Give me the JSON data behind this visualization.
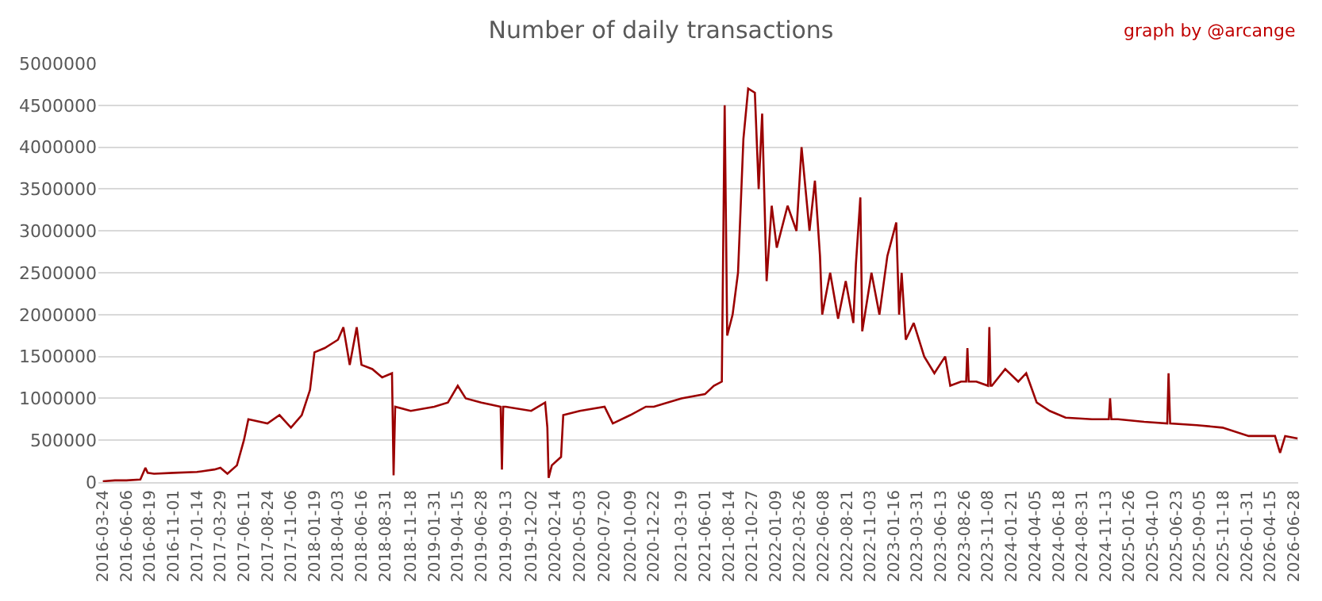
{
  "chart_data": {
    "type": "line",
    "title": "Number of daily transactions",
    "annotations": [
      "graph by @arcange"
    ],
    "x": [
      "2016-03-24",
      "2016-05-01",
      "2016-06-06",
      "2016-07-20",
      "2016-08-05",
      "2016-08-12",
      "2016-09-01",
      "2016-11-01",
      "2017-01-14",
      "2017-03-10",
      "2017-03-29",
      "2017-04-20",
      "2017-05-20",
      "2017-06-11",
      "2017-06-25",
      "2017-08-24",
      "2017-10-01",
      "2017-11-06",
      "2017-12-10",
      "2018-01-05",
      "2018-01-19",
      "2018-02-20",
      "2018-04-03",
      "2018-04-20",
      "2018-05-10",
      "2018-06-01",
      "2018-06-16",
      "2018-07-20",
      "2018-08-20",
      "2018-09-20",
      "2018-09-25",
      "2018-09-30",
      "2018-11-18",
      "2019-01-31",
      "2019-03-15",
      "2019-04-15",
      "2019-05-10",
      "2019-06-28",
      "2019-08-28",
      "2019-09-01",
      "2019-09-05",
      "2019-09-13",
      "2019-12-02",
      "2020-01-15",
      "2020-01-22",
      "2020-01-26",
      "2020-02-05",
      "2020-03-05",
      "2020-03-12",
      "2020-05-03",
      "2020-07-20",
      "2020-08-15",
      "2020-10-09",
      "2020-11-27",
      "2020-12-22",
      "2021-03-19",
      "2021-06-01",
      "2021-06-29",
      "2021-07-24",
      "2021-08-02",
      "2021-08-10",
      "2021-08-27",
      "2021-09-13",
      "2021-09-30",
      "2021-10-15",
      "2021-11-05",
      "2021-11-17",
      "2021-11-28",
      "2021-12-12",
      "2021-12-28",
      "2022-01-13",
      "2022-02-16",
      "2022-03-16",
      "2022-04-01",
      "2022-04-26",
      "2022-05-13",
      "2022-05-29",
      "2022-06-05",
      "2022-06-30",
      "2022-07-25",
      "2022-08-18",
      "2022-09-11",
      "2022-09-19",
      "2022-10-03",
      "2022-10-09",
      "2022-11-07",
      "2022-12-02",
      "2022-12-27",
      "2023-01-24",
      "2023-02-02",
      "2023-02-10",
      "2023-02-23",
      "2023-03-20",
      "2023-04-22",
      "2023-05-24",
      "2023-06-27",
      "2023-07-13",
      "2023-08-16",
      "2023-09-01",
      "2023-09-05",
      "2023-09-09",
      "2023-10-03",
      "2023-11-09",
      "2023-11-13",
      "2023-11-17",
      "2023-11-21",
      "2024-01-02",
      "2024-02-12",
      "2024-03-08",
      "2024-04-10",
      "2024-05-21",
      "2024-07-10",
      "2024-10-01",
      "2024-11-23",
      "2024-11-27",
      "2024-12-01",
      "2024-12-22",
      "2025-03-14",
      "2025-05-26",
      "2025-05-30",
      "2025-06-04",
      "2025-08-27",
      "2025-11-16",
      "2026-02-06",
      "2026-04-30",
      "2026-05-16",
      "2026-06-01",
      "2026-07-10"
    ],
    "series": [
      {
        "color": "#9b0000",
        "values": [
          10000,
          20000,
          20000,
          30000,
          170000,
          110000,
          100000,
          110000,
          120000,
          150000,
          170000,
          100000,
          200000,
          500000,
          750000,
          700000,
          800000,
          650000,
          800000,
          1100000,
          1550000,
          1600000,
          1700000,
          1850000,
          1400000,
          1850000,
          1400000,
          1350000,
          1250000,
          1300000,
          80000,
          900000,
          850000,
          900000,
          950000,
          1150000,
          1000000,
          950000,
          900000,
          150000,
          900000,
          900000,
          850000,
          950000,
          650000,
          50000,
          200000,
          300000,
          800000,
          850000,
          900000,
          700000,
          800000,
          900000,
          900000,
          1000000,
          1050000,
          1150000,
          1200000,
          4500000,
          1750000,
          2000000,
          2500000,
          4100000,
          4700000,
          4650000,
          3500000,
          4400000,
          2400000,
          3300000,
          2800000,
          3300000,
          3000000,
          4000000,
          3000000,
          3600000,
          2700000,
          2000000,
          2500000,
          1950000,
          2400000,
          1900000,
          2600000,
          3400000,
          1800000,
          2500000,
          2000000,
          2700000,
          3100000,
          2000000,
          2500000,
          1700000,
          1900000,
          1500000,
          1300000,
          1500000,
          1150000,
          1200000,
          1200000,
          1600000,
          1200000,
          1200000,
          1150000,
          1850000,
          1150000,
          1150000,
          1350000,
          1200000,
          1300000,
          950000,
          850000,
          770000,
          750000,
          750000,
          1000000,
          750000,
          750000,
          720000,
          700000,
          1300000,
          700000,
          680000,
          650000,
          550000,
          550000,
          350000,
          550000,
          520000
        ]
      }
    ],
    "ylim": [
      0,
      5000000
    ],
    "yticks": [
      0,
      500000,
      1000000,
      1500000,
      2000000,
      2500000,
      3000000,
      3500000,
      4000000,
      4500000,
      5000000
    ],
    "xlim": [
      "2016-03-10",
      "2026-07-12"
    ],
    "xticks": [
      "2016-03-24",
      "2016-06-06",
      "2016-08-19",
      "2016-11-01",
      "2017-01-14",
      "2017-03-29",
      "2017-06-11",
      "2017-08-24",
      "2017-11-06",
      "2018-01-19",
      "2018-04-03",
      "2018-06-16",
      "2018-08-31",
      "2018-11-18",
      "2019-01-31",
      "2019-04-15",
      "2019-06-28",
      "2019-09-13",
      "2019-12-02",
      "2020-02-14",
      "2020-05-03",
      "2020-07-20",
      "2020-10-09",
      "2020-12-22",
      "2021-03-19",
      "2021-06-01",
      "2021-08-14",
      "2021-10-27",
      "2022-01-09",
      "2022-03-26",
      "2022-06-08",
      "2022-08-21",
      "2022-11-03",
      "2023-01-16",
      "2023-03-31",
      "2023-06-13",
      "2023-08-26",
      "2023-11-08",
      "2024-01-21",
      "2024-04-05",
      "2024-06-18",
      "2024-08-31",
      "2024-11-13",
      "2025-01-26",
      "2025-04-10",
      "2025-06-23",
      "2025-09-05",
      "2025-11-18",
      "2026-01-31",
      "2026-04-15",
      "2026-06-28"
    ],
    "grid": "y",
    "marker": "none",
    "line_style": "solid"
  }
}
